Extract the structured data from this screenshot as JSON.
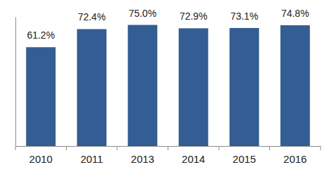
{
  "chart_data": {
    "type": "bar",
    "categories": [
      "2010",
      "2011",
      "2013",
      "2014",
      "2015",
      "2016"
    ],
    "values": [
      61.2,
      72.4,
      75.0,
      72.9,
      73.1,
      74.8
    ],
    "value_labels": [
      "61.2%",
      "72.4%",
      "75.0%",
      "72.9%",
      "73.1%",
      "74.8%"
    ],
    "color": "#335d93",
    "ylim": [
      0,
      80
    ],
    "data_labels": true,
    "tick_labels": "x",
    "grid": false
  }
}
